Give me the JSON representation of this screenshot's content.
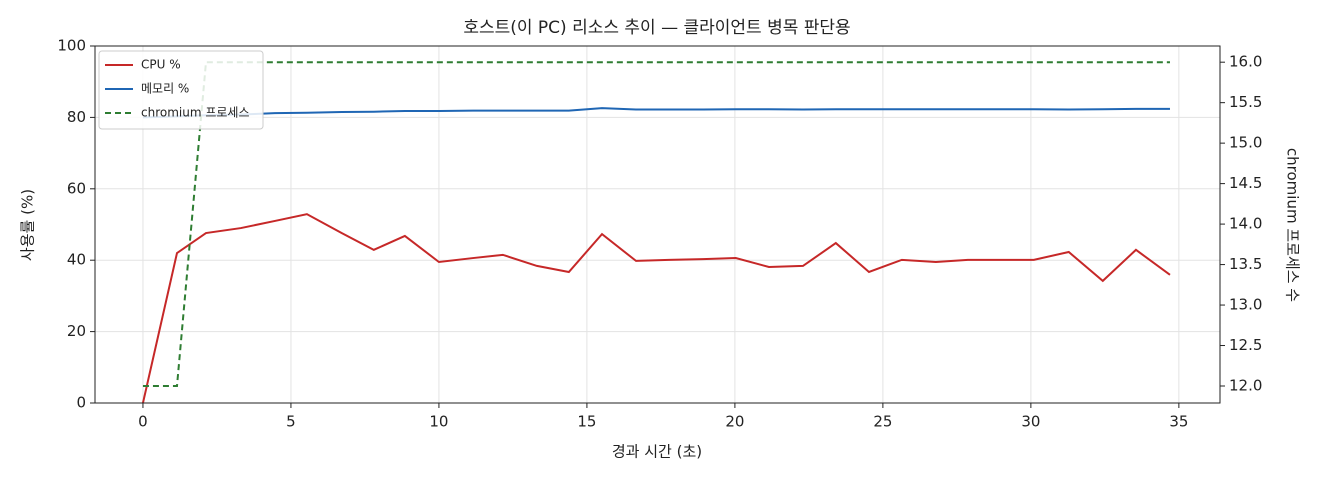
{
  "chart_data": {
    "type": "line",
    "title": "호스트(이 PC) 리소스 추이 — 클라이언트 병목 판단용",
    "x_label": "경과 시간 (초)",
    "y_label": "사용률 (%)",
    "y2_label": "chromium 프로세스 수",
    "x": [
      0,
      1.15,
      2.13,
      3.31,
      4.46,
      5.54,
      6.72,
      7.8,
      8.85,
      10.0,
      11.15,
      12.16,
      13.31,
      14.39,
      15.51,
      16.66,
      17.77,
      18.92,
      20.03,
      21.15,
      22.3,
      23.41,
      24.53,
      25.64,
      26.79,
      27.87,
      28.99,
      30.1,
      31.28,
      32.43,
      33.55,
      34.7
    ],
    "series": [
      {
        "name": "CPU %",
        "color": "#c62828",
        "dashed": false,
        "values": [
          0,
          42.0,
          47.6,
          49.0,
          51.0,
          52.9,
          47.6,
          42.9,
          46.8,
          39.5,
          40.6,
          41.5,
          38.4,
          36.7,
          47.3,
          39.8,
          40.1,
          40.3,
          40.6,
          38.1,
          38.4,
          44.8,
          36.7,
          40.1,
          39.5,
          40.1,
          40.1,
          40.1,
          42.3,
          34.2,
          42.9,
          35.9
        ]
      },
      {
        "name": "메모리 %",
        "color": "#1f66b4",
        "dashed": false,
        "values": [
          80.0,
          80.3,
          80.6,
          80.8,
          81.2,
          81.3,
          81.5,
          81.6,
          81.8,
          81.8,
          81.9,
          81.9,
          81.9,
          81.9,
          82.6,
          82.2,
          82.2,
          82.2,
          82.3,
          82.3,
          82.2,
          82.3,
          82.3,
          82.3,
          82.3,
          82.3,
          82.3,
          82.3,
          82.2,
          82.3,
          82.4,
          82.4
        ]
      },
      {
        "name": "chromium 프로세스",
        "color": "#2e7d32",
        "dashed": true,
        "axis": "y2",
        "values": [
          12,
          12,
          16,
          16,
          16,
          16,
          16,
          16,
          16,
          16,
          16,
          16,
          16,
          16,
          16,
          16,
          16,
          16,
          16,
          16,
          16,
          16,
          16,
          16,
          16,
          16,
          16,
          16,
          16,
          16,
          16,
          16
        ]
      }
    ],
    "xlim": [
      -1.62,
      36.39
    ],
    "xticks": [
      0,
      5,
      10,
      15,
      20,
      25,
      30,
      35
    ],
    "ylim": [
      0,
      100
    ],
    "yticks": [
      0,
      20,
      40,
      60,
      80,
      100
    ],
    "y2lim": [
      11.79,
      16.2
    ],
    "y2ticks": [
      {
        "value": 12,
        "label": "12.0"
      },
      12.5,
      {
        "value": 13,
        "label": "13.0"
      },
      13.5,
      {
        "value": 14,
        "label": "14.0"
      },
      14.5,
      {
        "value": 15,
        "label": "15.0"
      },
      15.5,
      {
        "value": 16,
        "label": "16.0"
      }
    ],
    "grid": true,
    "legend_position": "upper-left"
  }
}
